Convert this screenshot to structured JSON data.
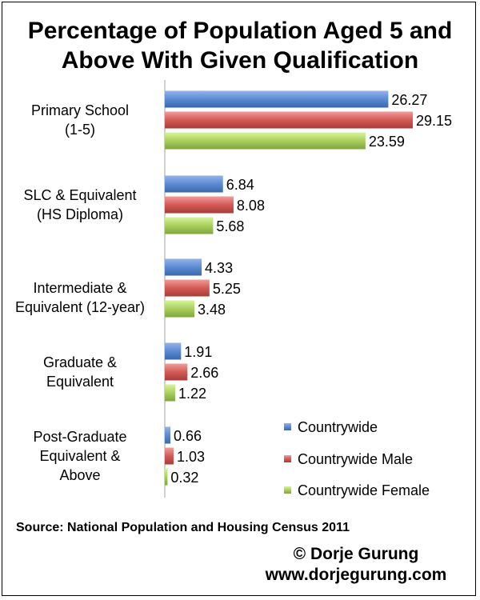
{
  "chart_data": {
    "type": "bar",
    "orientation": "horizontal",
    "title": "Percentage of Population Aged 5 and Above With Given Qualification",
    "categories": [
      "Primary School (1-5)",
      "SLC & Equivalent (HS Diploma)",
      "Intermediate & Equivalent (12-year)",
      "Graduate & Equivalent",
      "Post-Graduate Equivalent & Above"
    ],
    "series": [
      {
        "name": "Countrywide",
        "color": "#4f81bd",
        "values": [
          26.27,
          6.84,
          4.33,
          1.91,
          0.66
        ]
      },
      {
        "name": "Countrywide Male",
        "color": "#c0504d",
        "values": [
          29.15,
          8.08,
          5.25,
          2.66,
          1.03
        ]
      },
      {
        "name": "Countrywide Female",
        "color": "#9bbb59",
        "values": [
          23.59,
          5.68,
          3.48,
          1.22,
          0.32
        ]
      }
    ],
    "xlim": [
      0,
      30
    ],
    "legend_position": "bottom-right",
    "grid": false
  },
  "source": "Source: National Population and Housing Census 2011",
  "credit": {
    "author": "© Dorje Gurung",
    "website": "www.dorjegurung.com"
  }
}
